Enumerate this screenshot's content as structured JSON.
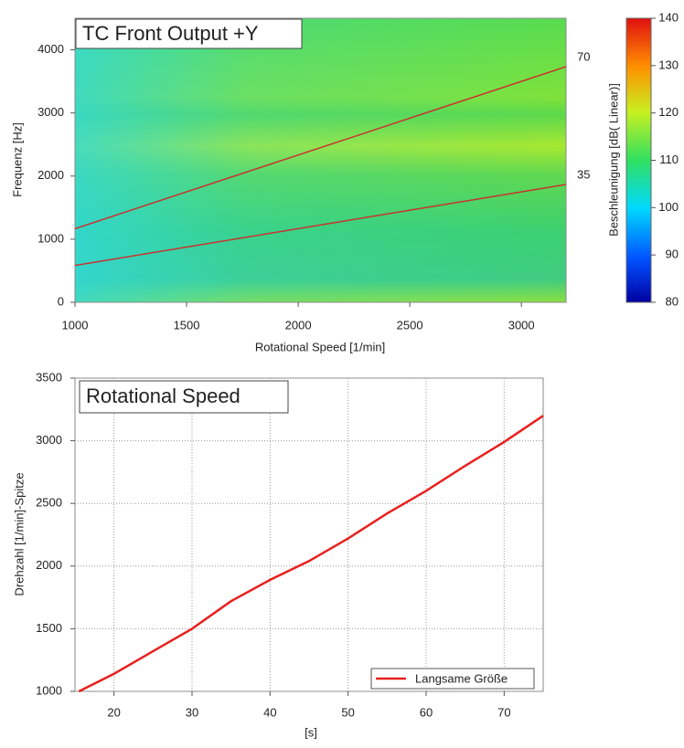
{
  "chart_data": [
    {
      "type": "spectrogram",
      "title": "TC Front Output +Y",
      "xlabel": "Rotational Speed  [1/min]",
      "ylabel": "Frequenz [Hz]",
      "xlim": [
        1000,
        3200
      ],
      "xticks": [
        1000,
        1500,
        2000,
        2500,
        3000
      ],
      "ylim": [
        0,
        4500
      ],
      "yticks": [
        0,
        1000,
        2000,
        3000,
        4000
      ],
      "orders": [
        70,
        35
      ],
      "order_color": "#c8322e",
      "colorbar_label": "Beschleunigung [dB( Linear)]",
      "clim": [
        80,
        140
      ],
      "cticks": [
        80,
        90,
        100,
        110,
        120,
        130,
        140
      ]
    },
    {
      "type": "line",
      "title": "Rotational Speed",
      "xlabel": "[s]",
      "ylabel": "Drehzahl [1/min]-Spitze",
      "xlim": [
        15,
        75
      ],
      "xticks": [
        20,
        30,
        40,
        50,
        60,
        70
      ],
      "ylim": [
        1000,
        3500
      ],
      "yticks": [
        1000,
        1500,
        2000,
        2500,
        3000,
        3500
      ],
      "grid": true,
      "legend": "lower right",
      "x": [
        15.5,
        20,
        25,
        30,
        35,
        40,
        45,
        50,
        55,
        60,
        65,
        70,
        75
      ],
      "series": [
        {
          "name": "Langsame Größe",
          "color": "#e8201e",
          "values": [
            1000,
            1140,
            1320,
            1500,
            1720,
            1890,
            2040,
            2220,
            2420,
            2600,
            2800,
            2990,
            3200
          ]
        }
      ]
    }
  ]
}
